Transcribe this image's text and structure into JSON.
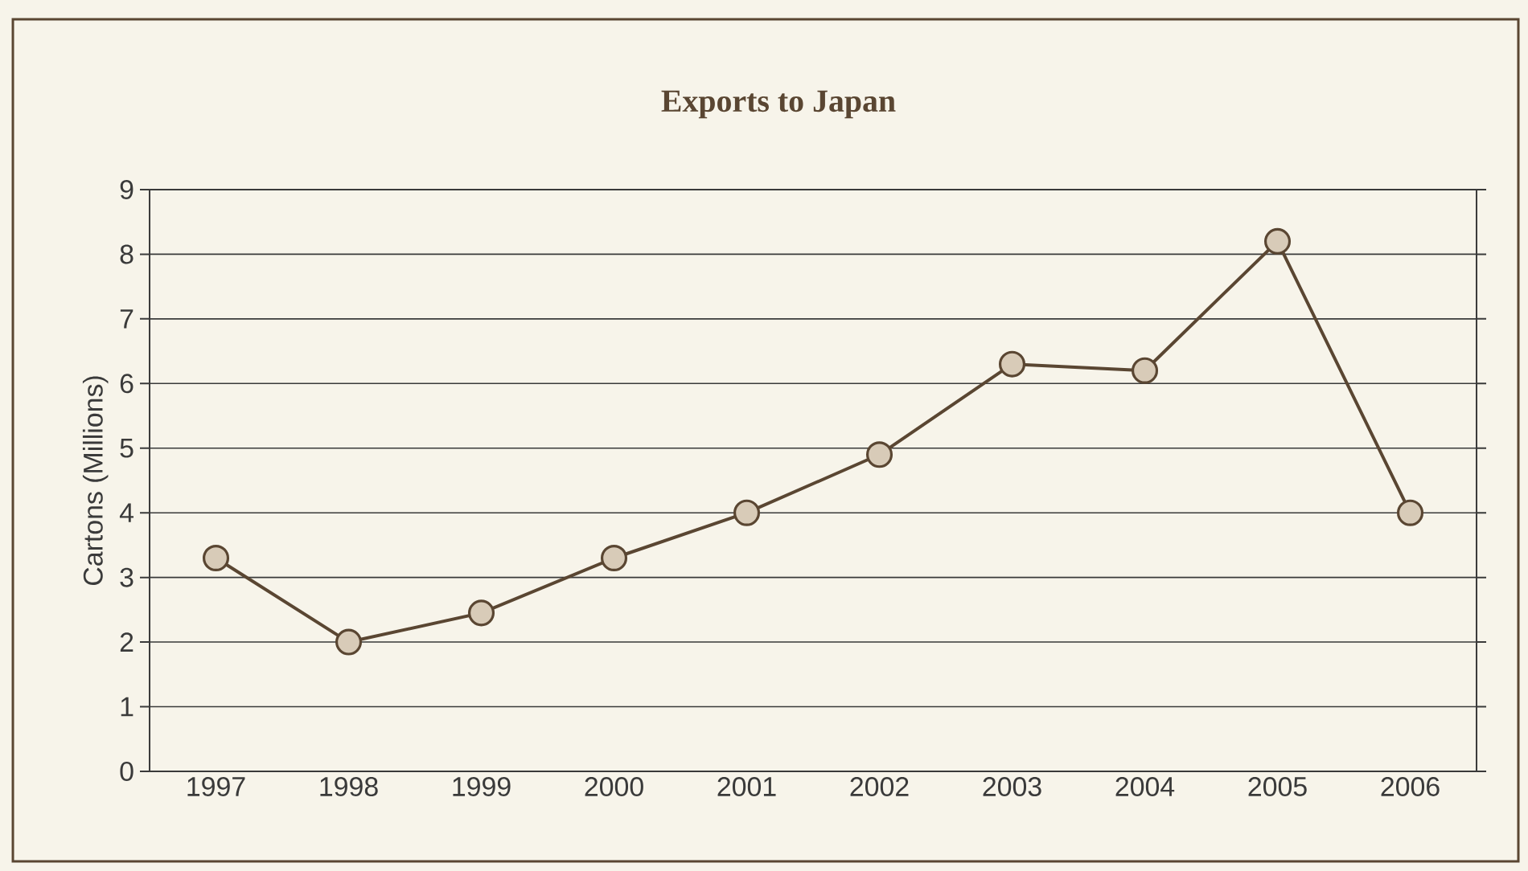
{
  "chart_data": {
    "type": "line",
    "title": "Exports to Japan",
    "ylabel": "Cartons (Millions)",
    "categories": [
      "1997",
      "1998",
      "1999",
      "2000",
      "2001",
      "2002",
      "2003",
      "2004",
      "2005",
      "2006"
    ],
    "series": [
      {
        "color": "#5a4632",
        "values": [
          3.3,
          2.0,
          2.45,
          3.3,
          4.0,
          4.9,
          6.3,
          6.2,
          8.2,
          4.0
        ]
      }
    ],
    "ylim": [
      0,
      9
    ],
    "yticks": [
      0,
      1,
      2,
      3,
      4,
      5,
      6,
      7,
      8,
      9
    ],
    "grid": "y",
    "marker": "circle",
    "line_style": "solid",
    "legend": false
  }
}
